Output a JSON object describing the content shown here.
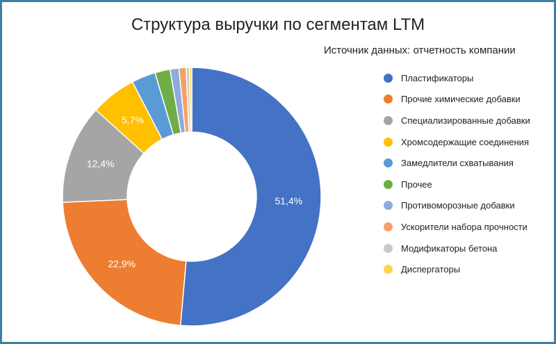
{
  "title": "Структура выручки по сегментам LTM",
  "subtitle": "Источник данных: отчетность компании",
  "chart_data": {
    "type": "pie",
    "donut": true,
    "title": "Структура выручки по сегментам LTM",
    "subtitle": "Источник данных: отчетность компании",
    "legend_position": "right",
    "unit": "%",
    "slices": [
      {
        "name": "Пластификаторы",
        "value": 51.4,
        "label": "51,4%",
        "color": "#4472c4"
      },
      {
        "name": "Прочие химические добавки",
        "value": 22.9,
        "label": "22,9%",
        "color": "#ed7d31"
      },
      {
        "name": "Специализированные добавки",
        "value": 12.4,
        "label": "12,4%",
        "color": "#a5a5a5"
      },
      {
        "name": "Хромсодержащие соединения",
        "value": 5.7,
        "label": "5,7%",
        "color": "#ffc000"
      },
      {
        "name": "Замедлители схватывания",
        "value": 3.0,
        "label": "",
        "color": "#5b9bd5"
      },
      {
        "name": "Прочее",
        "value": 1.9,
        "label": "",
        "color": "#70ad47"
      },
      {
        "name": "Противоморозные добавки",
        "value": 1.1,
        "label": "",
        "color": "#8faadc"
      },
      {
        "name": "Ускорители набора прочности",
        "value": 0.9,
        "label": "",
        "color": "#f4a06a"
      },
      {
        "name": "Модификаторы бетона",
        "value": 0.4,
        "label": "",
        "color": "#c9c9c9"
      },
      {
        "name": "Диспергаторы",
        "value": 0.3,
        "label": "",
        "color": "#ffd34d"
      }
    ]
  }
}
